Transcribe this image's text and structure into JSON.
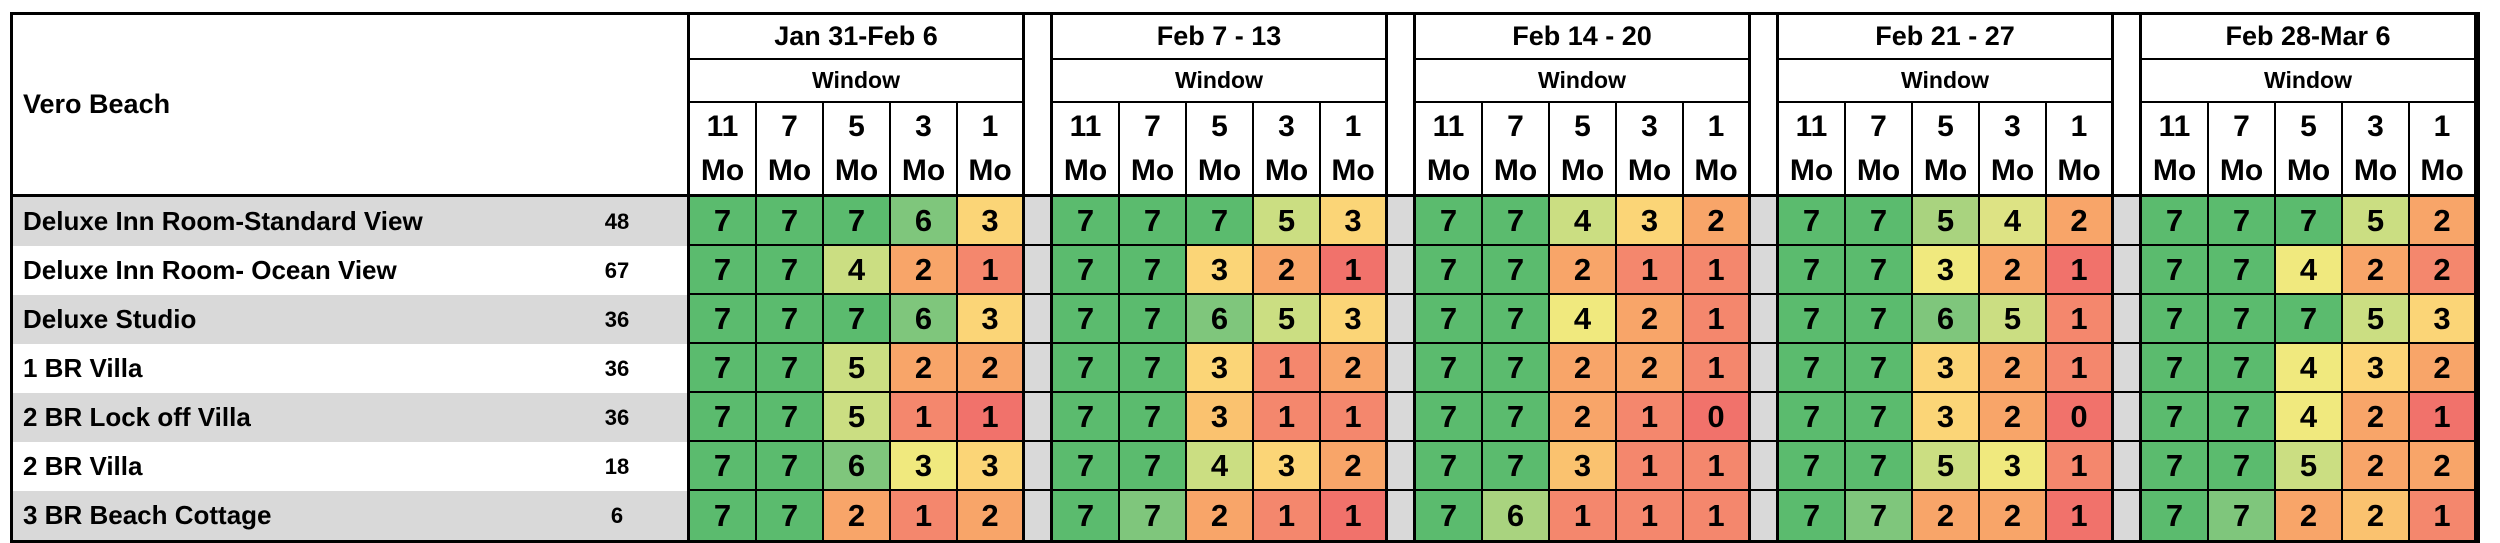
{
  "chart_data": {
    "type": "heatmap",
    "title": "Vero Beach",
    "subheader": "Window",
    "window_columns": [
      "11 Mo",
      "7 Mo",
      "5 Mo",
      "3 Mo",
      "1 Mo"
    ],
    "row_labels": [
      "Deluxe Inn Room-Standard View",
      "Deluxe Inn Room- Ocean View",
      "Deluxe Studio",
      "1 BR Villa",
      "2 BR Lock off Villa",
      "2 BR Villa",
      "3 BR Beach Cottage"
    ],
    "row_counts": [
      48,
      67,
      36,
      36,
      36,
      18,
      6
    ],
    "value_range": [
      0,
      7
    ],
    "groups": [
      {
        "label": "Jan 31-Feb 6",
        "values": [
          [
            7,
            7,
            7,
            6,
            3
          ],
          [
            7,
            7,
            4,
            2,
            1
          ],
          [
            7,
            7,
            7,
            6,
            3
          ],
          [
            7,
            7,
            5,
            2,
            2
          ],
          [
            7,
            7,
            5,
            1,
            1
          ],
          [
            7,
            7,
            6,
            3,
            3
          ],
          [
            7,
            7,
            2,
            1,
            2
          ]
        ],
        "colors": [
          [
            "g",
            "g",
            "g",
            "lg",
            "gy"
          ],
          [
            "g",
            "g",
            "yg",
            "o",
            "ro"
          ],
          [
            "g",
            "g",
            "g",
            "lg",
            "gy"
          ],
          [
            "g",
            "g",
            "yg",
            "o",
            "o"
          ],
          [
            "g",
            "g",
            "yg",
            "ro",
            "r"
          ],
          [
            "g",
            "g",
            "lg",
            "y",
            "gy"
          ],
          [
            "g",
            "g",
            "o",
            "ro",
            "o"
          ]
        ]
      },
      {
        "label": "Feb 7 - 13",
        "values": [
          [
            7,
            7,
            7,
            5,
            3
          ],
          [
            7,
            7,
            3,
            2,
            1
          ],
          [
            7,
            7,
            6,
            5,
            3
          ],
          [
            7,
            7,
            3,
            1,
            2
          ],
          [
            7,
            7,
            3,
            1,
            1
          ],
          [
            7,
            7,
            4,
            3,
            2
          ],
          [
            7,
            7,
            2,
            1,
            1
          ]
        ],
        "colors": [
          [
            "g",
            "g",
            "g",
            "yg",
            "gy"
          ],
          [
            "g",
            "g",
            "gy",
            "o",
            "r"
          ],
          [
            "g",
            "g",
            "lg",
            "yg",
            "gy"
          ],
          [
            "g",
            "g",
            "gy",
            "ro",
            "o"
          ],
          [
            "g",
            "g",
            "go",
            "ro",
            "ro"
          ],
          [
            "g",
            "g",
            "yg",
            "gy",
            "o"
          ],
          [
            "g",
            "lg",
            "o",
            "ro",
            "r"
          ]
        ]
      },
      {
        "label": "Feb 14 - 20",
        "values": [
          [
            7,
            7,
            4,
            3,
            2
          ],
          [
            7,
            7,
            2,
            1,
            1
          ],
          [
            7,
            7,
            4,
            2,
            1
          ],
          [
            7,
            7,
            2,
            2,
            1
          ],
          [
            7,
            7,
            2,
            1,
            0
          ],
          [
            7,
            7,
            3,
            1,
            1
          ],
          [
            7,
            6,
            1,
            1,
            1
          ]
        ],
        "colors": [
          [
            "g",
            "g",
            "yg",
            "gy",
            "o"
          ],
          [
            "g",
            "g",
            "o",
            "ro",
            "ro"
          ],
          [
            "g",
            "g",
            "y",
            "o",
            "ro"
          ],
          [
            "g",
            "g",
            "o",
            "o",
            "ro"
          ],
          [
            "g",
            "g",
            "o",
            "ro",
            "r"
          ],
          [
            "g",
            "g",
            "go",
            "ro",
            "ro"
          ],
          [
            "g",
            "llg",
            "ro",
            "ro",
            "ro"
          ]
        ]
      },
      {
        "label": "Feb 21 - 27",
        "values": [
          [
            7,
            7,
            5,
            4,
            2
          ],
          [
            7,
            7,
            3,
            2,
            1
          ],
          [
            7,
            7,
            6,
            5,
            1
          ],
          [
            7,
            7,
            3,
            2,
            1
          ],
          [
            7,
            7,
            3,
            2,
            0
          ],
          [
            7,
            7,
            5,
            3,
            1
          ],
          [
            7,
            7,
            2,
            2,
            1
          ]
        ],
        "colors": [
          [
            "g",
            "g",
            "llg",
            "ygl",
            "o"
          ],
          [
            "g",
            "g",
            "y",
            "o",
            "r"
          ],
          [
            "g",
            "g",
            "lg",
            "yg",
            "ro"
          ],
          [
            "g",
            "g",
            "gy",
            "o",
            "ro"
          ],
          [
            "g",
            "g",
            "gy",
            "o",
            "r"
          ],
          [
            "g",
            "g",
            "yg",
            "y",
            "ro"
          ],
          [
            "g",
            "lg",
            "o",
            "o",
            "r"
          ]
        ]
      },
      {
        "label": "Feb 28-Mar 6",
        "values": [
          [
            7,
            7,
            7,
            5,
            2
          ],
          [
            7,
            7,
            4,
            2,
            2
          ],
          [
            7,
            7,
            7,
            5,
            3
          ],
          [
            7,
            7,
            4,
            3,
            2
          ],
          [
            7,
            7,
            4,
            2,
            1
          ],
          [
            7,
            7,
            5,
            2,
            2
          ],
          [
            7,
            7,
            2,
            2,
            1
          ]
        ],
        "colors": [
          [
            "g",
            "g",
            "g",
            "yg",
            "o"
          ],
          [
            "g",
            "g",
            "y",
            "o",
            "ro"
          ],
          [
            "g",
            "g",
            "g",
            "yg",
            "gy"
          ],
          [
            "g",
            "g",
            "y",
            "gy",
            "o"
          ],
          [
            "g",
            "g",
            "y",
            "o",
            "r"
          ],
          [
            "g",
            "g",
            "yg",
            "o",
            "o"
          ],
          [
            "g",
            "lg",
            "o",
            "go",
            "ro"
          ]
        ]
      }
    ],
    "palette": {
      "g": "#5BBB6E",
      "lg": "#7FC67C",
      "llg": "#A9D37F",
      "yg": "#CBDE82",
      "ygl": "#DDE384",
      "y": "#F0E97E",
      "gy": "#FBD577",
      "go": "#FAC26F",
      "o": "#F8A569",
      "ro": "#F4876D",
      "r": "#F1726B"
    },
    "row_stripe_color": "#D9D9D9",
    "spacer_color": "#D9D9D9"
  }
}
